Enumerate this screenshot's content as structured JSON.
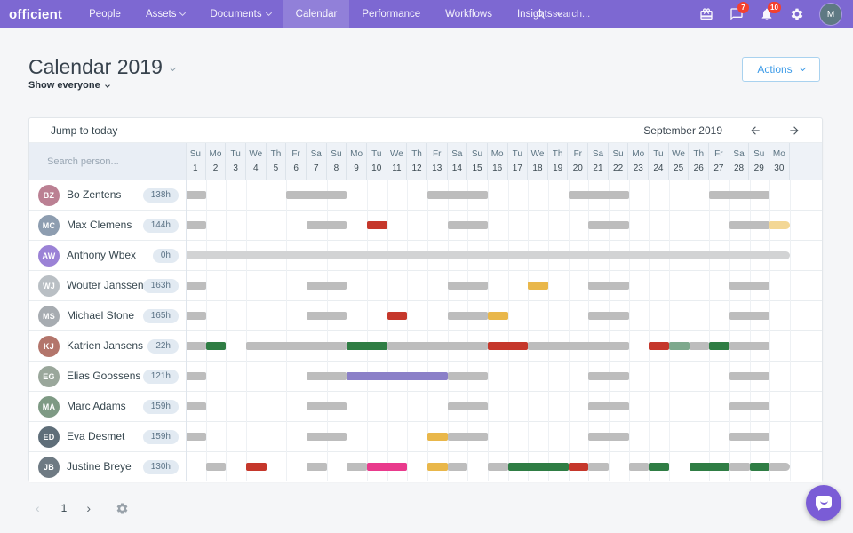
{
  "navbar": {
    "logo": "officient",
    "items": [
      {
        "label": "People",
        "caret": false,
        "active": false
      },
      {
        "label": "Assets",
        "caret": true,
        "active": false
      },
      {
        "label": "Documents",
        "caret": true,
        "active": false
      },
      {
        "label": "Calendar",
        "caret": false,
        "active": true
      },
      {
        "label": "Performance",
        "caret": false,
        "active": false
      },
      {
        "label": "Workflows",
        "caret": false,
        "active": false
      },
      {
        "label": "Insights",
        "caret": true,
        "active": false
      }
    ],
    "search_placeholder": "search...",
    "icons": [
      {
        "name": "gift",
        "badge": ""
      },
      {
        "name": "messages",
        "badge": "7"
      },
      {
        "name": "notifications",
        "badge": "10"
      },
      {
        "name": "settings",
        "badge": ""
      }
    ],
    "avatar_initial": "M"
  },
  "page": {
    "title": "Calendar 2019",
    "filter_label": "Show everyone",
    "actions_label": "Actions"
  },
  "calendar": {
    "jump_label": "Jump to today",
    "month_label": "September 2019",
    "search_placeholder": "Search person...",
    "days": [
      {
        "dow": "Su",
        "date": "1"
      },
      {
        "dow": "Mo",
        "date": "2"
      },
      {
        "dow": "Tu",
        "date": "3"
      },
      {
        "dow": "We",
        "date": "4"
      },
      {
        "dow": "Th",
        "date": "5"
      },
      {
        "dow": "Fr",
        "date": "6"
      },
      {
        "dow": "Sa",
        "date": "7"
      },
      {
        "dow": "Su",
        "date": "8"
      },
      {
        "dow": "Mo",
        "date": "9"
      },
      {
        "dow": "Tu",
        "date": "10"
      },
      {
        "dow": "We",
        "date": "11"
      },
      {
        "dow": "Th",
        "date": "12"
      },
      {
        "dow": "Fr",
        "date": "13"
      },
      {
        "dow": "Sa",
        "date": "14"
      },
      {
        "dow": "Su",
        "date": "15"
      },
      {
        "dow": "Mo",
        "date": "16"
      },
      {
        "dow": "Tu",
        "date": "17"
      },
      {
        "dow": "We",
        "date": "18"
      },
      {
        "dow": "Th",
        "date": "19"
      },
      {
        "dow": "Fr",
        "date": "20"
      },
      {
        "dow": "Sa",
        "date": "21"
      },
      {
        "dow": "Su",
        "date": "22"
      },
      {
        "dow": "Mo",
        "date": "23"
      },
      {
        "dow": "Tu",
        "date": "24"
      },
      {
        "dow": "We",
        "date": "25"
      },
      {
        "dow": "Th",
        "date": "26"
      },
      {
        "dow": "Fr",
        "date": "27"
      },
      {
        "dow": "Sa",
        "date": "28"
      },
      {
        "dow": "Su",
        "date": "29"
      },
      {
        "dow": "Mo",
        "date": "30"
      }
    ],
    "colors": {
      "gray": "#bdbdbd",
      "lightgray": "#d2d3d4",
      "green": "#2f7d44",
      "mutedgreen": "#7ea98d",
      "red": "#c5372b",
      "gold": "#e9b74a",
      "palegold": "#f3d795",
      "purple": "#8b80c8",
      "pink": "#e93a8c"
    },
    "rows": [
      {
        "name": "Bo Zentens",
        "hours": "138h",
        "initials": "BZ",
        "avatar_color": "#bb8093",
        "bars": [
          {
            "from": 1,
            "to": 1,
            "color": "gray"
          },
          {
            "from": 6,
            "to": 8,
            "color": "gray"
          },
          {
            "from": 13,
            "to": 15,
            "color": "gray"
          },
          {
            "from": 20,
            "to": 22,
            "color": "gray"
          },
          {
            "from": 27,
            "to": 29,
            "color": "gray"
          }
        ]
      },
      {
        "name": "Max Clemens",
        "hours": "144h",
        "initials": "MC",
        "avatar_color": "#8d9db0",
        "bars": [
          {
            "from": 1,
            "to": 1,
            "color": "gray"
          },
          {
            "from": 7,
            "to": 8,
            "color": "gray"
          },
          {
            "from": 10,
            "to": 10,
            "color": "red"
          },
          {
            "from": 14,
            "to": 15,
            "color": "gray"
          },
          {
            "from": 21,
            "to": 22,
            "color": "gray"
          },
          {
            "from": 28,
            "to": 29,
            "color": "gray"
          },
          {
            "from": 30,
            "to": 30,
            "color": "palegold",
            "cap": "right"
          }
        ]
      },
      {
        "name": "Anthony Wbex",
        "hours": "0h",
        "initials": "AW",
        "avatar_color": "#9b82d6",
        "bars": [
          {
            "from": 1,
            "to": 30,
            "color": "lightgray",
            "cap": "right"
          }
        ]
      },
      {
        "name": "Wouter Janssens",
        "hours": "163h",
        "initials": "WJ",
        "avatar_color": "#b9bfc4",
        "bars": [
          {
            "from": 1,
            "to": 1,
            "color": "gray"
          },
          {
            "from": 7,
            "to": 8,
            "color": "gray"
          },
          {
            "from": 14,
            "to": 15,
            "color": "gray"
          },
          {
            "from": 18,
            "to": 18,
            "color": "gold"
          },
          {
            "from": 21,
            "to": 22,
            "color": "gray"
          },
          {
            "from": 28,
            "to": 29,
            "color": "gray"
          }
        ]
      },
      {
        "name": "Michael Stone",
        "hours": "165h",
        "initials": "MS",
        "avatar_color": "#a7acb1",
        "bars": [
          {
            "from": 1,
            "to": 1,
            "color": "gray"
          },
          {
            "from": 7,
            "to": 8,
            "color": "gray"
          },
          {
            "from": 11,
            "to": 11,
            "color": "red"
          },
          {
            "from": 14,
            "to": 15,
            "color": "gray"
          },
          {
            "from": 16,
            "to": 16,
            "color": "gold"
          },
          {
            "from": 21,
            "to": 22,
            "color": "gray"
          },
          {
            "from": 28,
            "to": 29,
            "color": "gray"
          }
        ]
      },
      {
        "name": "Katrien Jansens",
        "hours": "22h",
        "initials": "KJ",
        "avatar_color": "#b3756b",
        "bars": [
          {
            "from": 1,
            "to": 1,
            "color": "gray"
          },
          {
            "from": 2,
            "to": 2,
            "color": "green"
          },
          {
            "from": 4,
            "to": 8,
            "color": "gray"
          },
          {
            "from": 9,
            "to": 10,
            "color": "green"
          },
          {
            "from": 11,
            "to": 15,
            "color": "gray"
          },
          {
            "from": 16,
            "to": 17,
            "color": "red"
          },
          {
            "from": 18,
            "to": 22,
            "color": "gray"
          },
          {
            "from": 24,
            "to": 24,
            "color": "red"
          },
          {
            "from": 25,
            "to": 25,
            "color": "mutedgreen"
          },
          {
            "from": 26,
            "to": 26,
            "color": "gray"
          },
          {
            "from": 27,
            "to": 27,
            "color": "green"
          },
          {
            "from": 28,
            "to": 29,
            "color": "gray"
          }
        ]
      },
      {
        "name": "Elias Goossens",
        "hours": "121h",
        "initials": "EG",
        "avatar_color": "#9aa79b",
        "bars": [
          {
            "from": 1,
            "to": 1,
            "color": "gray"
          },
          {
            "from": 7,
            "to": 8,
            "color": "gray"
          },
          {
            "from": 9,
            "to": 13,
            "color": "purple"
          },
          {
            "from": 14,
            "to": 15,
            "color": "gray"
          },
          {
            "from": 21,
            "to": 22,
            "color": "gray"
          },
          {
            "from": 28,
            "to": 29,
            "color": "gray"
          }
        ]
      },
      {
        "name": "Marc Adams",
        "hours": "159h",
        "initials": "MA",
        "avatar_color": "#7e9a84",
        "bars": [
          {
            "from": 1,
            "to": 1,
            "color": "gray"
          },
          {
            "from": 7,
            "to": 8,
            "color": "gray"
          },
          {
            "from": 14,
            "to": 15,
            "color": "gray"
          },
          {
            "from": 21,
            "to": 22,
            "color": "gray"
          },
          {
            "from": 28,
            "to": 29,
            "color": "gray"
          }
        ]
      },
      {
        "name": "Eva Desmet",
        "hours": "159h",
        "initials": "ED",
        "avatar_color": "#5f6e79",
        "bars": [
          {
            "from": 1,
            "to": 1,
            "color": "gray"
          },
          {
            "from": 7,
            "to": 8,
            "color": "gray"
          },
          {
            "from": 13,
            "to": 13,
            "color": "gold"
          },
          {
            "from": 14,
            "to": 15,
            "color": "gray"
          },
          {
            "from": 21,
            "to": 22,
            "color": "gray"
          },
          {
            "from": 28,
            "to": 29,
            "color": "gray"
          }
        ]
      },
      {
        "name": "Justine Breye",
        "hours": "130h",
        "initials": "JB",
        "avatar_color": "#6e7a83",
        "bars": [
          {
            "from": 2,
            "to": 2,
            "color": "gray"
          },
          {
            "from": 4,
            "to": 4,
            "color": "red"
          },
          {
            "from": 7,
            "to": 7,
            "color": "gray"
          },
          {
            "from": 9,
            "to": 9,
            "color": "gray"
          },
          {
            "from": 10,
            "to": 11,
            "color": "pink"
          },
          {
            "from": 13,
            "to": 13,
            "color": "gold"
          },
          {
            "from": 14,
            "to": 14,
            "color": "gray"
          },
          {
            "from": 16,
            "to": 16,
            "color": "gray"
          },
          {
            "from": 17,
            "to": 19,
            "color": "green"
          },
          {
            "from": 20,
            "to": 20,
            "color": "red"
          },
          {
            "from": 21,
            "to": 21,
            "color": "gray"
          },
          {
            "from": 23,
            "to": 23,
            "color": "gray"
          },
          {
            "from": 24,
            "to": 24,
            "color": "green"
          },
          {
            "from": 26,
            "to": 27,
            "color": "green"
          },
          {
            "from": 28,
            "to": 28,
            "color": "gray"
          },
          {
            "from": 29,
            "to": 29,
            "color": "green"
          },
          {
            "from": 30,
            "to": 30,
            "color": "gray",
            "cap": "right"
          }
        ]
      }
    ]
  },
  "footer": {
    "page": "1"
  }
}
